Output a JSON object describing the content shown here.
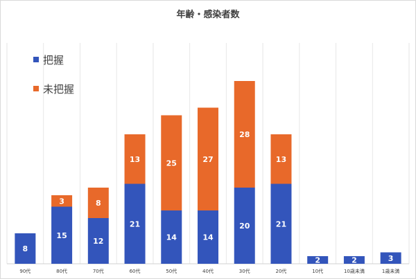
{
  "chart_data": {
    "type": "bar",
    "stacked": true,
    "title": "年齢・感染者数",
    "categories": [
      "90代",
      "80代",
      "70代",
      "60代",
      "50代",
      "40代",
      "30代",
      "20代",
      "10代",
      "10歳未満",
      "1歳未満"
    ],
    "series": [
      {
        "name": "把握",
        "color": "#3355bb",
        "values": [
          8,
          15,
          12,
          21,
          14,
          14,
          20,
          21,
          2,
          2,
          3
        ]
      },
      {
        "name": "未把握",
        "color": "#e8692a",
        "values": [
          0,
          3,
          8,
          13,
          25,
          27,
          28,
          13,
          0,
          0,
          0
        ]
      }
    ],
    "ylim": [
      0,
      58
    ],
    "grid": true,
    "legend_position": "top-left",
    "xlabel": "",
    "ylabel": ""
  }
}
